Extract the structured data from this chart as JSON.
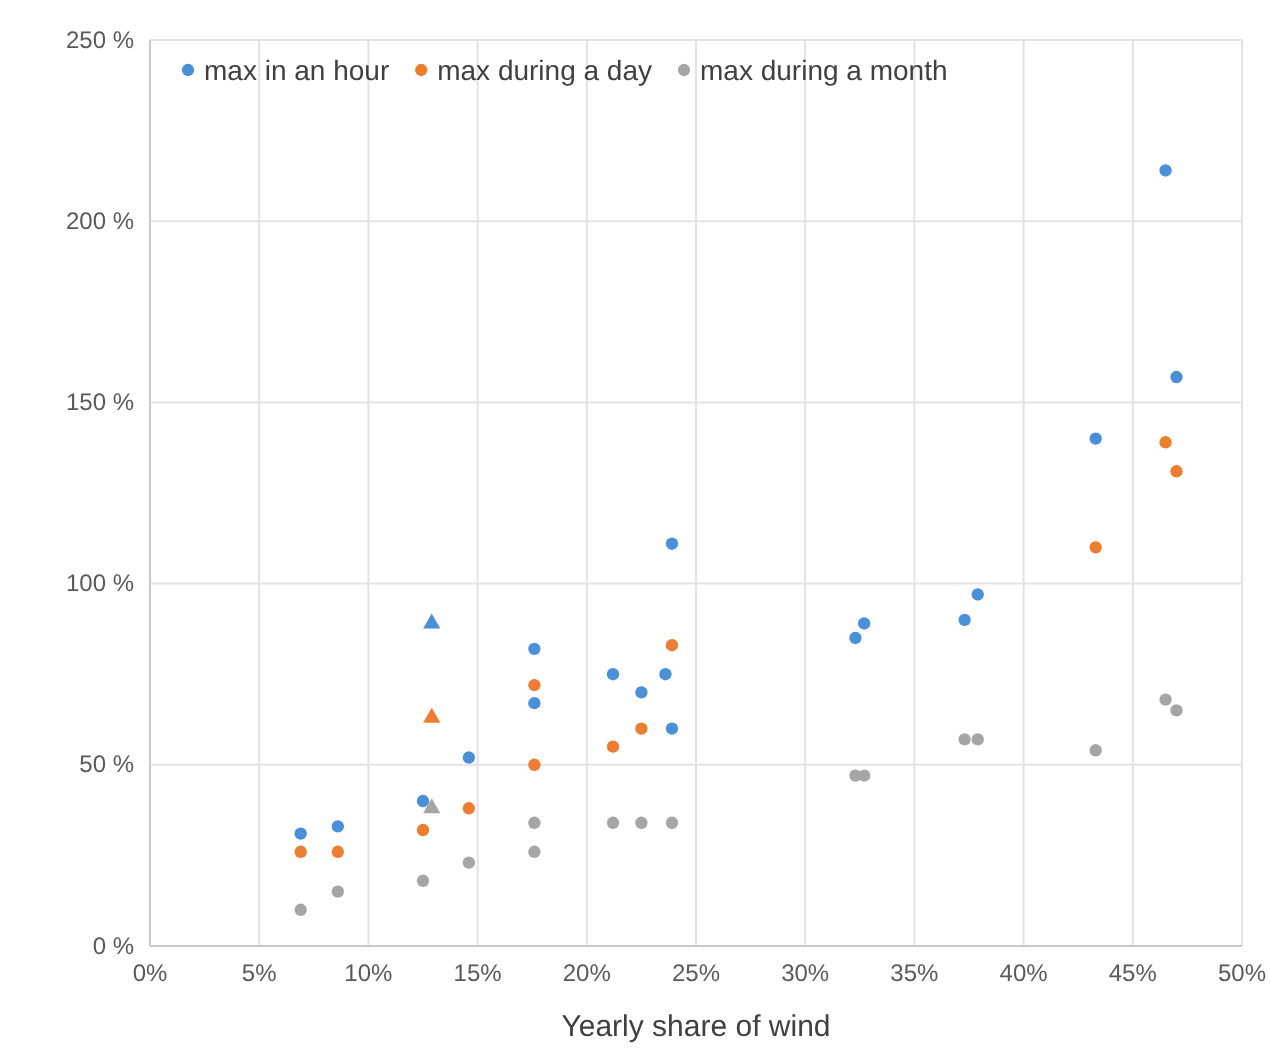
{
  "chart_data": {
    "type": "scatter",
    "xlabel": "Yearly share of wind",
    "marker": "circle",
    "grid": true,
    "legend": "top left",
    "xlim": [
      0,
      50
    ],
    "ylim": [
      0,
      250
    ],
    "xticks": [
      {
        "value": 0,
        "label": "0%"
      },
      {
        "value": 5,
        "label": "5%"
      },
      {
        "value": 10,
        "label": "10%"
      },
      {
        "value": 15,
        "label": "15%"
      },
      {
        "value": 20,
        "label": "20%"
      },
      {
        "value": 25,
        "label": "25%"
      },
      {
        "value": 30,
        "label": "30%"
      },
      {
        "value": 35,
        "label": "35%"
      },
      {
        "value": 40,
        "label": "40%"
      },
      {
        "value": 45,
        "label": "45%"
      },
      {
        "value": 50,
        "label": "50%"
      }
    ],
    "yticks": [
      {
        "value": 0,
        "label": "0 %"
      },
      {
        "value": 50,
        "label": "50 %"
      },
      {
        "value": 100,
        "label": "100 %"
      },
      {
        "value": 150,
        "label": "150 %"
      },
      {
        "value": 200,
        "label": "200 %"
      },
      {
        "value": 250,
        "label": "250 %"
      }
    ],
    "series": [
      {
        "name": "max in an hour",
        "color": "#4a90d9",
        "x": [
          6.9,
          8.6,
          12.5,
          14.6,
          17.6,
          17.6,
          21.2,
          22.5,
          23.6,
          23.9,
          23.9,
          32.3,
          32.7,
          37.3,
          37.9,
          43.3,
          46.5,
          47
        ],
        "values": [
          31,
          33,
          40,
          52,
          82,
          67,
          75,
          70,
          75,
          111,
          60,
          85,
          89,
          90,
          97,
          140,
          214,
          157
        ]
      },
      {
        "name": "max during a day",
        "color": "#ed7d31",
        "x": [
          6.9,
          8.6,
          12.5,
          14.6,
          17.6,
          17.6,
          21.2,
          22.5,
          23.9,
          43.3,
          46.5,
          47
        ],
        "values": [
          26,
          26,
          32,
          38,
          72,
          50,
          55,
          60,
          83,
          110,
          139,
          131
        ]
      },
      {
        "name": "max during a month",
        "color": "#a5a5a5",
        "x": [
          6.9,
          8.6,
          12.5,
          14.6,
          17.6,
          17.6,
          21.2,
          22.5,
          23.9,
          32.3,
          32.7,
          37.3,
          37.9,
          43.3,
          46.5,
          47
        ],
        "values": [
          10,
          15,
          18,
          23,
          34,
          26,
          34,
          34,
          34,
          47,
          47,
          57,
          57,
          54,
          68,
          65
        ]
      },
      {
        "color": "#4a90d9",
        "marker": "triangle",
        "x": [
          12.9
        ],
        "values": [
          89
        ]
      },
      {
        "color": "#ed7d31",
        "marker": "triangle",
        "x": [
          12.9
        ],
        "values": [
          63
        ]
      },
      {
        "color": "#a5a5a5",
        "marker": "triangle",
        "x": [
          12.9
        ],
        "values": [
          38
        ]
      }
    ]
  }
}
